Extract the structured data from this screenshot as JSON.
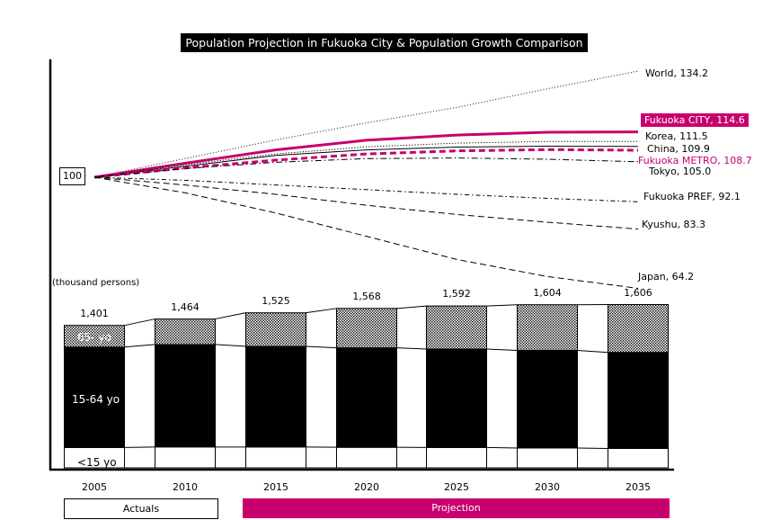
{
  "chart_data": [
    {
      "type": "line",
      "title": "Population Projection in Fukuoka City & Population Growth Comparison",
      "base_label": "100",
      "x": [
        2005,
        2010,
        2015,
        2020,
        2025,
        2030,
        2035
      ],
      "series": [
        {
          "name": "World",
          "end_label": "World, 134.2",
          "values": [
            100,
            106,
            112,
            117.5,
            122.5,
            128.5,
            134.2
          ],
          "color": "#333333",
          "style": "dotted"
        },
        {
          "name": "Fukuoka CITY",
          "end_label": "Fukuoka CITY, 114.6",
          "values": [
            100,
            104.5,
            108.8,
            111.9,
            113.6,
            114.5,
            114.6
          ],
          "color": "#c8006e",
          "style": "solid",
          "highlight": true
        },
        {
          "name": "Korea",
          "end_label": "Korea, 111.5",
          "values": [
            100,
            104,
            107.5,
            109.8,
            111,
            111.5,
            111.5
          ],
          "color": "#000000",
          "style": "dotted"
        },
        {
          "name": "China",
          "end_label": "China, 109.9",
          "values": [
            100,
            103.5,
            107,
            108.8,
            109.7,
            110,
            109.9
          ],
          "color": "#000000",
          "style": "solid"
        },
        {
          "name": "Fukuoka METRO",
          "end_label": "Fukuoka METRO, 108.7",
          "values": [
            100,
            103,
            105.5,
            107.5,
            108.5,
            108.9,
            108.7
          ],
          "color": "#c8006e",
          "style": "dashed"
        },
        {
          "name": "Tokyo",
          "end_label": "Tokyo, 105.0",
          "values": [
            100,
            102.8,
            104.8,
            106,
            106.2,
            105.8,
            105.0
          ],
          "color": "#000000",
          "style": "dashdot"
        },
        {
          "name": "Fukuoka PREF",
          "end_label": "Fukuoka PREF, 92.1",
          "values": [
            100,
            99,
            97.5,
            96,
            94.5,
            93.2,
            92.1
          ],
          "color": "#000000",
          "style": "dashdot2"
        },
        {
          "name": "Kyushu",
          "end_label": "Kyushu, 83.3",
          "values": [
            100,
            97.5,
            94.5,
            91,
            88,
            85.5,
            83.3
          ],
          "color": "#000000",
          "style": "dashed"
        },
        {
          "name": "Japan",
          "end_label": "Japan, 64.2",
          "values": [
            100,
            95,
            88.5,
            81,
            73.5,
            68,
            64.2
          ],
          "color": "#000000",
          "style": "dashed"
        }
      ]
    },
    {
      "type": "bar",
      "unit_label": "(thousand persons)",
      "categories": [
        "2005",
        "2010",
        "2015",
        "2020",
        "2025",
        "2030",
        "2035"
      ],
      "totals": [
        "1,401",
        "1,464",
        "1,525",
        "1,568",
        "1,592",
        "1,604",
        "1,606"
      ],
      "series": [
        {
          "name": "<15 yo",
          "values": [
            200,
            205,
            205,
            202,
            200,
            195,
            190
          ],
          "fill": "#ffffff"
        },
        {
          "name": "15-64 yo",
          "values": [
            988,
            1008,
            990,
            978,
            968,
            960,
            945
          ],
          "fill": "#000000"
        },
        {
          "name": "65- yo",
          "values": [
            213,
            251,
            330,
            388,
            424,
            449,
            471
          ],
          "fill": "dotted"
        }
      ]
    }
  ],
  "footer": {
    "actuals": "Actuals",
    "projection": "Projection"
  },
  "colors": {
    "accent": "#c8006e"
  }
}
